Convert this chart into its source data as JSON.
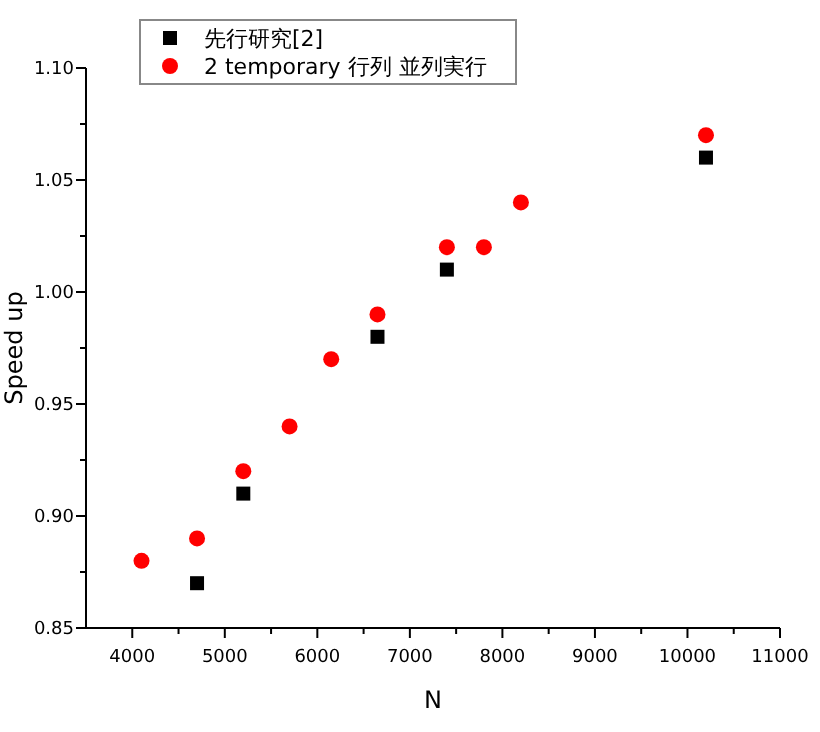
{
  "chart_data": {
    "type": "scatter",
    "xlabel": "N",
    "ylabel": "Speed up",
    "xlim": [
      3500,
      11000
    ],
    "xticks": [
      4000,
      {
        "value": 4500,
        "label": null
      },
      5000,
      {
        "value": 5500,
        "label": null
      },
      6000,
      {
        "value": 6500,
        "label": null
      },
      7000,
      {
        "value": 7500,
        "label": null
      },
      8000,
      {
        "value": 8500,
        "label": null
      },
      9000,
      {
        "value": 9500,
        "label": null
      },
      10000,
      {
        "value": 10500,
        "label": null
      },
      11000
    ],
    "ylim": [
      0.85,
      1.1
    ],
    "yticks": [
      {
        "value": 0.85,
        "label": "0.85"
      },
      {
        "value": 0.875,
        "label": null
      },
      {
        "value": 0.9,
        "label": "0.90"
      },
      {
        "value": 0.925,
        "label": null
      },
      {
        "value": 0.95,
        "label": "0.95"
      },
      {
        "value": 0.975,
        "label": null
      },
      {
        "value": 1.0,
        "label": "1.00"
      },
      {
        "value": 1.025,
        "label": null
      },
      {
        "value": 1.05,
        "label": "1.05"
      },
      {
        "value": 1.075,
        "label": null
      },
      {
        "value": 1.1,
        "label": "1.10"
      }
    ],
    "x": [
      4100,
      4700,
      5200,
      5700,
      6150,
      6650,
      7400,
      7800,
      8200,
      10200
    ],
    "legend": "top left",
    "grid": false,
    "series": [
      {
        "name": "先行研究[2]",
        "color": "#000000",
        "marker": "square",
        "values": [
          null,
          0.87,
          0.91,
          null,
          null,
          0.98,
          1.01,
          null,
          null,
          1.06
        ]
      },
      {
        "name": "2 temporary 行列 並列実行",
        "color": "#ff0000",
        "marker": "circle",
        "values": [
          0.88,
          0.89,
          0.92,
          0.94,
          0.97,
          0.99,
          1.02,
          1.02,
          1.04,
          1.07
        ]
      }
    ]
  }
}
